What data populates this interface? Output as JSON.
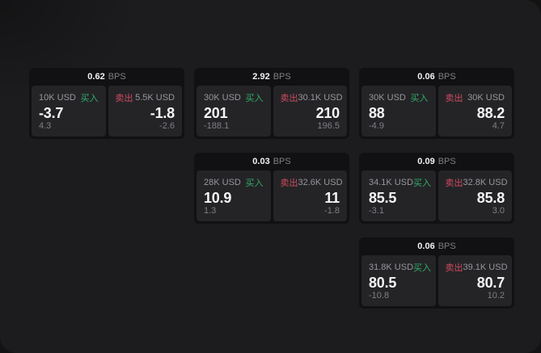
{
  "labels": {
    "bps_unit": "BPS",
    "buy": "买入",
    "sell": "卖出"
  },
  "colors": {
    "buy": "#2fae67",
    "sell": "#ce4a5f",
    "page_background": "#1c1c1e",
    "card_background": "#111113",
    "panel_background": "#242427",
    "primary_text": "#f5f5f6",
    "secondary_text": "#97979c"
  },
  "cards": [
    {
      "row": 1,
      "col": 1,
      "bps": "0.62",
      "buy": {
        "amount": "10K USD",
        "value": "-3.7",
        "change": "4.3"
      },
      "sell": {
        "amount": "5.5K USD",
        "value": "-1.8",
        "change": "-2.6"
      }
    },
    {
      "row": 1,
      "col": 2,
      "bps": "2.92",
      "buy": {
        "amount": "30K USD",
        "value": "201",
        "change": "-188.1"
      },
      "sell": {
        "amount": "30.1K USD",
        "value": "210",
        "change": "196.5"
      }
    },
    {
      "row": 1,
      "col": 3,
      "bps": "0.06",
      "buy": {
        "amount": "30K USD",
        "value": "88",
        "change": "-4.9"
      },
      "sell": {
        "amount": "30K USD",
        "value": "88.2",
        "change": "4.7"
      }
    },
    {
      "row": 2,
      "col": 2,
      "bps": "0.03",
      "buy": {
        "amount": "28K USD",
        "value": "10.9",
        "change": "1.3"
      },
      "sell": {
        "amount": "32.6K USD",
        "value": "11",
        "change": "-1.8"
      }
    },
    {
      "row": 2,
      "col": 3,
      "bps": "0.09",
      "buy": {
        "amount": "34.1K USD",
        "value": "85.5",
        "change": "-3.1"
      },
      "sell": {
        "amount": "32.8K USD",
        "value": "85.8",
        "change": "3.0"
      }
    },
    {
      "row": 3,
      "col": 3,
      "bps": "0.06",
      "buy": {
        "amount": "31.8K USD",
        "value": "80.5",
        "change": "-10.8"
      },
      "sell": {
        "amount": "39.1K USD",
        "value": "80.7",
        "change": "10.2"
      }
    }
  ]
}
